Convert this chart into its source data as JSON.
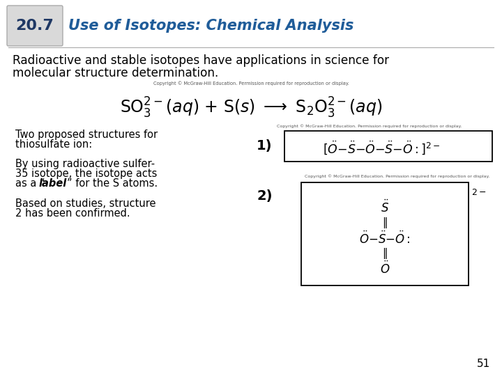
{
  "bg_color": "#ffffff",
  "slide_number": "51",
  "header_box_color": "#d9d9d9",
  "header_box_text": "20.7",
  "header_box_text_color": "#1f3864",
  "header_title": "Use of Isotopes: Chemical Analysis",
  "header_title_color": "#1f5c99",
  "body_text_color": "#000000",
  "body_line1": "Radioactive and stable isotopes have applications in science for",
  "body_line2": "molecular structure determination.",
  "copyright1": "Copyright © McGraw-Hill Education. Permission required for reproduction or display.",
  "copyright2": "Copyright © McGraw-Hill Education. Permission required for reproduction or display.",
  "copyright3": "Copyright © McGraw-Hill Education. Permission required for reproduction or display.",
  "left_text1_l1": "Two proposed structures for",
  "left_text1_l2": "thiosulfate ion:",
  "left_text2_l1": "By using radioactive sulfer-",
  "left_text2_l2": "35 isotope, the isotope acts",
  "left_text2_l3a": "as a “",
  "left_text2_l3b": "label",
  "left_text2_l3c": "” for the S atoms.",
  "left_text3_l1": "Based on studies, structure",
  "left_text3_l2": "2 has been confirmed.",
  "num1": "1)",
  "num2": "2)",
  "page_num_color": "#000000",
  "header_line_color": "#aaaaaa",
  "struct1_color": "#000000",
  "struct2_color": "#000000"
}
